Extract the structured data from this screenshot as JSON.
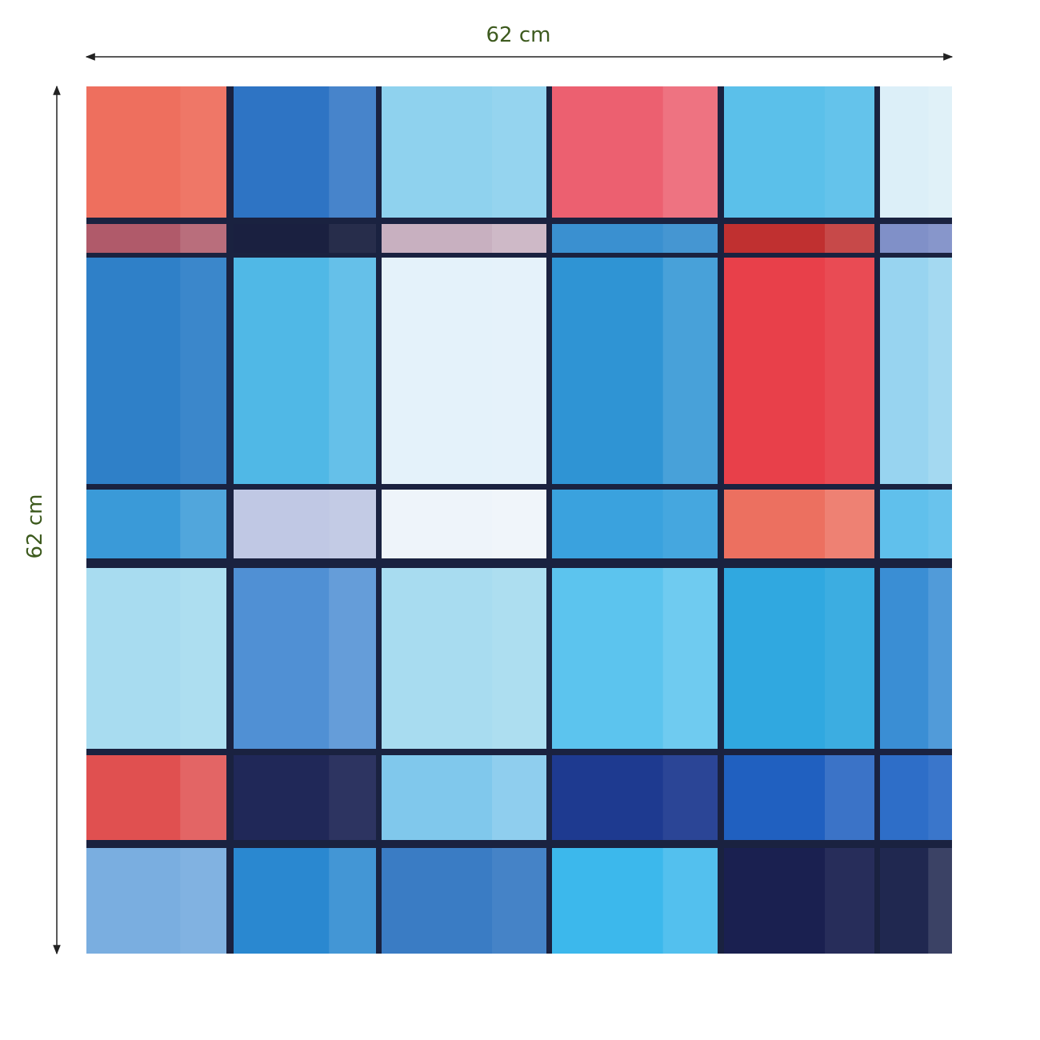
{
  "dimensions": {
    "width": "62 cm",
    "height": "62 cm"
  }
}
